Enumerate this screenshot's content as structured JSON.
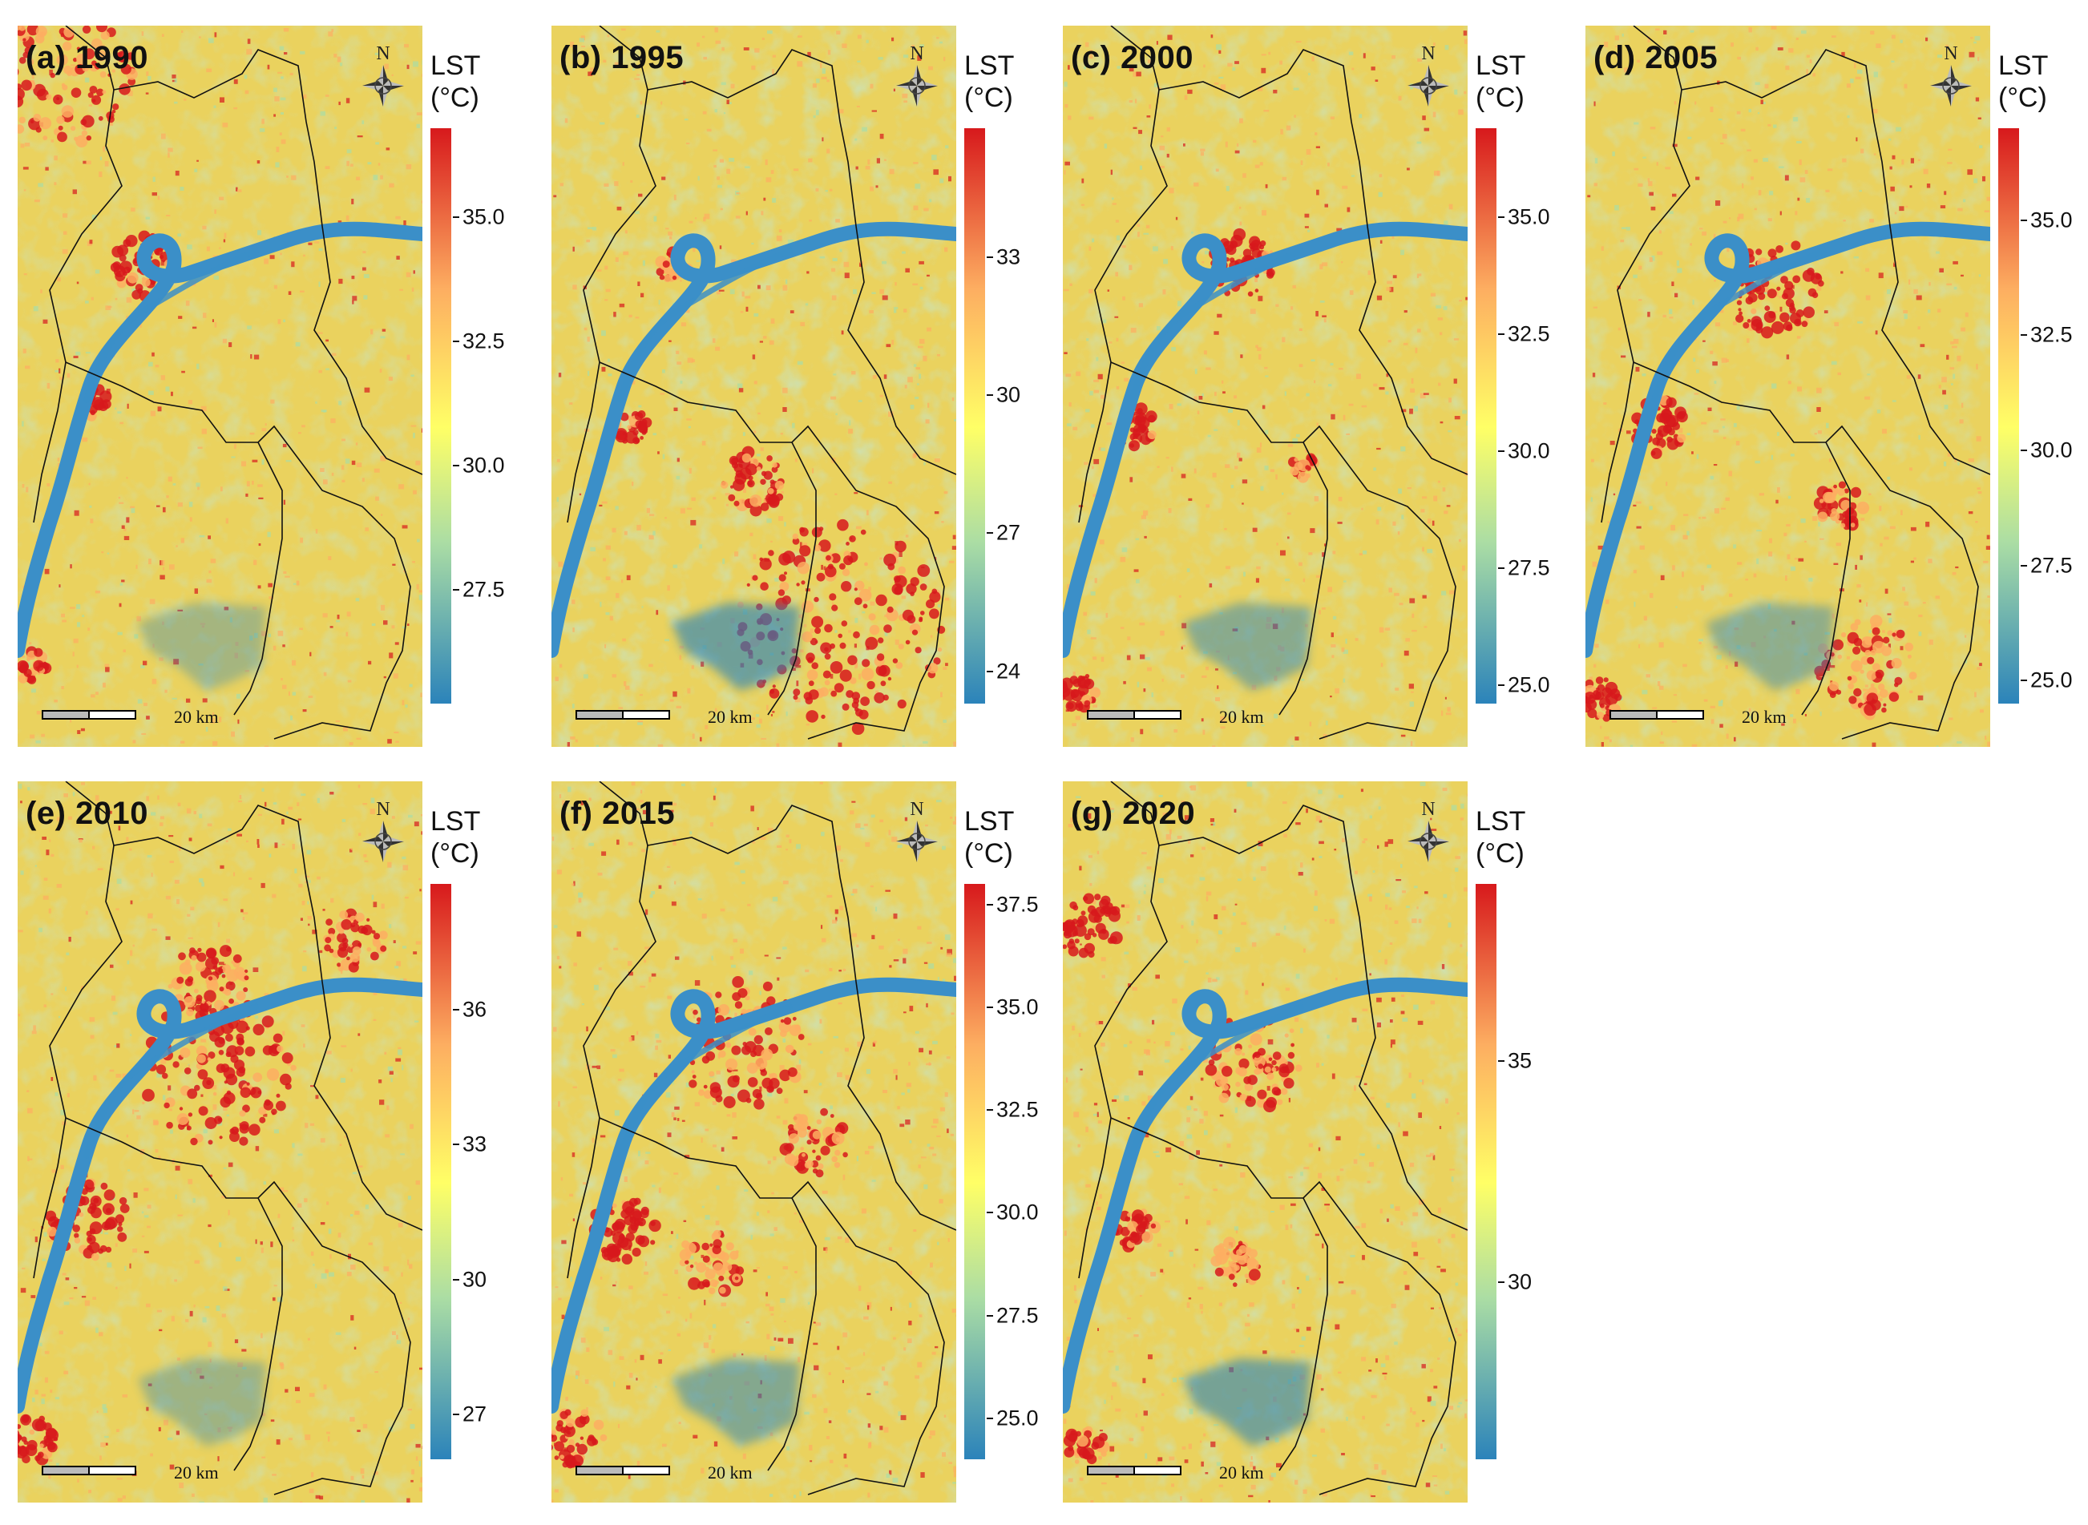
{
  "figure": {
    "panels": [
      {
        "id": "a",
        "title": "(a) 1990",
        "legend_title_line1": "LST",
        "legend_title_line2": "(°C)",
        "scale_label": "20 km",
        "north_label": "N",
        "legend_min": 25.2,
        "legend_max": 36.8,
        "ticks": [
          {
            "value": 35.0,
            "label": "35.0"
          },
          {
            "value": 32.5,
            "label": "32.5"
          },
          {
            "value": 30.0,
            "label": "30.0"
          },
          {
            "value": 27.5,
            "label": "27.5"
          }
        ]
      },
      {
        "id": "b",
        "title": "(b) 1995",
        "legend_title_line1": "LST",
        "legend_title_line2": "(°C)",
        "scale_label": "20 km",
        "north_label": "N",
        "legend_min": 23.3,
        "legend_max": 35.8,
        "ticks": [
          {
            "value": 33,
            "label": "33"
          },
          {
            "value": 30,
            "label": "30"
          },
          {
            "value": 27,
            "label": "27"
          },
          {
            "value": 24,
            "label": "24"
          }
        ]
      },
      {
        "id": "c",
        "title": "(c) 2000",
        "legend_title_line1": "LST",
        "legend_title_line2": "(°C)",
        "scale_label": "20 km",
        "north_label": "N",
        "legend_min": 24.6,
        "legend_max": 36.9,
        "ticks": [
          {
            "value": 35.0,
            "label": "35.0"
          },
          {
            "value": 32.5,
            "label": "32.5"
          },
          {
            "value": 30.0,
            "label": "30.0"
          },
          {
            "value": 27.5,
            "label": "27.5"
          },
          {
            "value": 25.0,
            "label": "25.0"
          }
        ]
      },
      {
        "id": "d",
        "title": "(d) 2005",
        "legend_title_line1": "LST",
        "legend_title_line2": "(°C)",
        "scale_label": "20 km",
        "north_label": "N",
        "legend_min": 24.5,
        "legend_max": 37.0,
        "ticks": [
          {
            "value": 35.0,
            "label": "35.0"
          },
          {
            "value": 32.5,
            "label": "32.5"
          },
          {
            "value": 30.0,
            "label": "30.0"
          },
          {
            "value": 27.5,
            "label": "27.5"
          },
          {
            "value": 25.0,
            "label": "25.0"
          }
        ]
      },
      {
        "id": "e",
        "title": "(e) 2010",
        "legend_title_line1": "LST",
        "legend_title_line2": "(°C)",
        "scale_label": "20 km",
        "north_label": "N",
        "legend_min": 26.0,
        "legend_max": 38.8,
        "ticks": [
          {
            "value": 36,
            "label": "36"
          },
          {
            "value": 33,
            "label": "33"
          },
          {
            "value": 30,
            "label": "30"
          },
          {
            "value": 27,
            "label": "27"
          }
        ]
      },
      {
        "id": "f",
        "title": "(f) 2015",
        "legend_title_line1": "LST",
        "legend_title_line2": "(°C)",
        "scale_label": "20 km",
        "north_label": "N",
        "legend_min": 24.0,
        "legend_max": 38.0,
        "ticks": [
          {
            "value": 37.5,
            "label": "37.5"
          },
          {
            "value": 35.0,
            "label": "35.0"
          },
          {
            "value": 32.5,
            "label": "32.5"
          },
          {
            "value": 30.0,
            "label": "30.0"
          },
          {
            "value": 27.5,
            "label": "27.5"
          },
          {
            "value": 25.0,
            "label": "25.0"
          }
        ]
      },
      {
        "id": "g",
        "title": "(g) 2020",
        "legend_title_line1": "LST",
        "legend_title_line2": "(°C)",
        "scale_label": "20 km",
        "north_label": "N",
        "legend_min": 26.0,
        "legend_max": 39.0,
        "ticks": [
          {
            "value": 35,
            "label": "35"
          },
          {
            "value": 30,
            "label": "30"
          }
        ]
      }
    ],
    "colors": {
      "hot": "#d7191c",
      "warm": "#fdae61",
      "mid": "#ffff66",
      "cool": "#abdda4",
      "cold": "#2b83ba",
      "river": "#3b8fc8",
      "boundary": "#111111"
    }
  }
}
